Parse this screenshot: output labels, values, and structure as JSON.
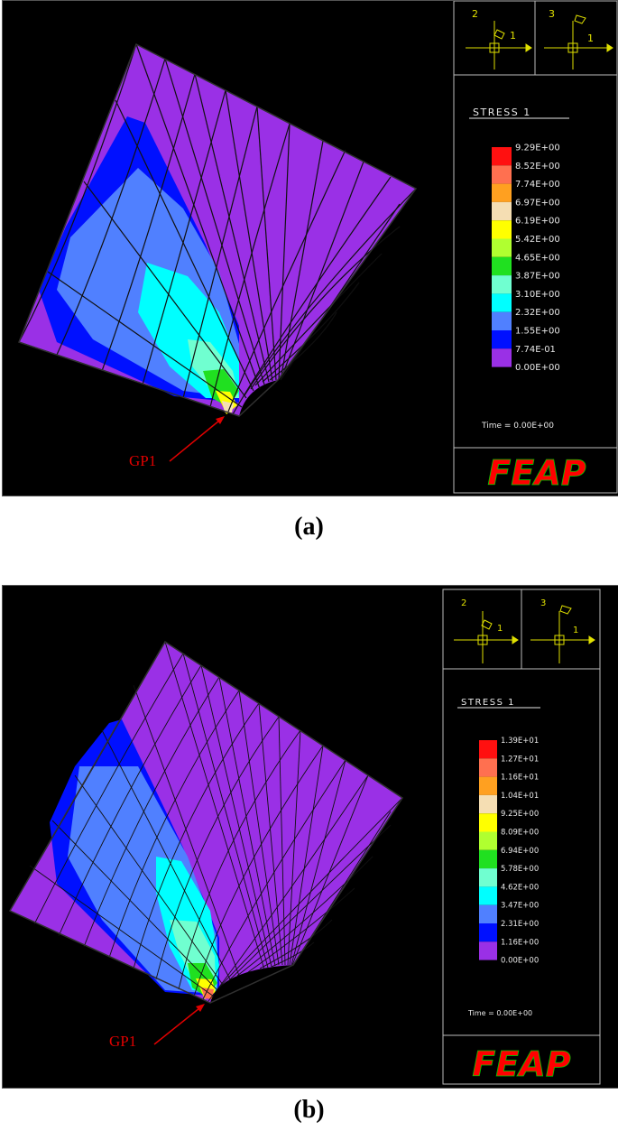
{
  "figures": [
    {
      "caption": "(a)",
      "legend_title": "STRESS 1",
      "legend_values": [
        "9.29E+00",
        "8.52E+00",
        "7.74E+00",
        "6.97E+00",
        "6.19E+00",
        "5.42E+00",
        "4.65E+00",
        "3.87E+00",
        "3.10E+00",
        "2.32E+00",
        "1.55E+00",
        "7.74E-01",
        "0.00E+00"
      ],
      "time_label": "Time = 0.00E+00",
      "logo": "FEAP",
      "point_label": "GP1",
      "axis_labels": [
        "2",
        "1",
        "3",
        "1"
      ]
    },
    {
      "caption": "(b)",
      "legend_title": "STRESS 1",
      "legend_values": [
        "1.39E+01",
        "1.27E+01",
        "1.16E+01",
        "1.04E+01",
        "9.25E+00",
        "8.09E+00",
        "6.94E+00",
        "5.78E+00",
        "4.62E+00",
        "3.47E+00",
        "2.31E+00",
        "1.16E+00",
        "0.00E+00"
      ],
      "time_label": "Time = 0.00E+00",
      "logo": "FEAP",
      "point_label": "GP1",
      "axis_labels": [
        "2",
        "1",
        "3",
        "1"
      ]
    }
  ],
  "colors": {
    "bands": [
      "#ff1010",
      "#ff7050",
      "#ffa020",
      "#f5deb3",
      "#ffff00",
      "#b0ff30",
      "#20e020",
      "#70ffd0",
      "#00ffff",
      "#5080ff",
      "#0010ff",
      "#9a30e6"
    ],
    "mesh": "#101010",
    "axes": "#e0e000",
    "arrow": "#e00000"
  }
}
